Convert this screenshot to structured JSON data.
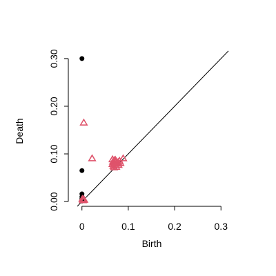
{
  "chart_data": {
    "type": "scatter",
    "title": "",
    "xlabel": "Birth",
    "ylabel": "Death",
    "xlim": [
      -0.016,
      0.316
    ],
    "ylim": [
      -0.01,
      0.31
    ],
    "x_ticks": [
      0.0,
      0.1,
      0.2,
      0.3
    ],
    "x_tick_labels": [
      "0",
      "0.1",
      "0.2",
      "0.3"
    ],
    "y_ticks": [
      0.0,
      0.1,
      0.2,
      0.3
    ],
    "y_tick_labels": [
      "0.00",
      "0.10",
      "0.20",
      "0.30"
    ],
    "diagonal": true,
    "grid": false,
    "series": [
      {
        "marker": "filled-circle",
        "color": "#000000",
        "points": [
          [
            0.0,
            0.3
          ],
          [
            0.0,
            0.065
          ],
          [
            0.0,
            0.016
          ],
          [
            0.0,
            0.01
          ],
          [
            0.0,
            0.006
          ],
          [
            0.0,
            0.004
          ],
          [
            0.0,
            0.003
          ],
          [
            0.0,
            0.002
          ],
          [
            0.0,
            0.001
          ]
        ]
      },
      {
        "marker": "open-triangle",
        "color": "#DF536B",
        "points": [
          [
            0.004,
            0.165
          ],
          [
            0.022,
            0.09
          ],
          [
            0.066,
            0.088
          ],
          [
            0.07,
            0.086
          ],
          [
            0.074,
            0.084
          ],
          [
            0.078,
            0.082
          ],
          [
            0.081,
            0.085
          ],
          [
            0.089,
            0.09
          ],
          [
            0.083,
            0.08
          ],
          [
            0.072,
            0.076
          ],
          [
            0.068,
            0.074
          ],
          [
            0.066,
            0.078
          ],
          [
            0.07,
            0.081
          ],
          [
            0.076,
            0.079
          ],
          [
            0.079,
            0.076
          ],
          [
            0.074,
            0.072
          ],
          [
            0.069,
            0.071
          ],
          [
            0.067,
            0.083
          ],
          [
            0.072,
            0.087
          ],
          [
            0.001,
            0.005
          ],
          [
            0.003,
            0.004
          ],
          [
            0.005,
            0.003
          ],
          [
            0.002,
            0.002
          ]
        ]
      }
    ]
  }
}
